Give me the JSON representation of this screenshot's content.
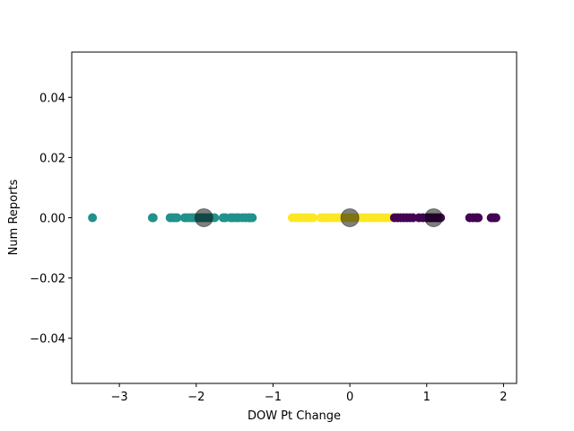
{
  "chart_data": {
    "type": "scatter",
    "title": "",
    "xlabel": "DOW Pt Change",
    "ylabel": "Num Reports",
    "xlim": [
      -3.62,
      2.17
    ],
    "ylim": [
      -0.055,
      0.055
    ],
    "xticks": [
      -3,
      -2,
      -1,
      0,
      1,
      2
    ],
    "xtick_labels": [
      "−3",
      "−2",
      "−1",
      "0",
      "1",
      "2"
    ],
    "yticks": [
      -0.04,
      -0.02,
      0.0,
      0.02,
      0.04
    ],
    "ytick_labels": [
      "−0.04",
      "−0.02",
      "0.00",
      "0.02",
      "0.04"
    ],
    "grid": false,
    "series": [
      {
        "color": "#21918c",
        "x": [
          -3.35,
          -2.57,
          -2.56,
          -2.34,
          -2.31,
          -2.28,
          -2.25,
          -2.15,
          -2.12,
          -2.08,
          -2.05,
          -2.02,
          -1.98,
          -1.95,
          -1.92,
          -1.89,
          -1.86,
          -1.83,
          -1.8,
          -1.76,
          -1.65,
          -1.62,
          -1.55,
          -1.52,
          -1.48,
          -1.45,
          -1.4,
          -1.36,
          -1.32,
          -1.3,
          -1.27
        ],
        "y": [
          0,
          0,
          0,
          0,
          0,
          0,
          0,
          0,
          0,
          0,
          0,
          0,
          0,
          0,
          0,
          0,
          0,
          0,
          0,
          0,
          0,
          0,
          0,
          0,
          0,
          0,
          0,
          0,
          0,
          0,
          0
        ]
      },
      {
        "color": "#fde725",
        "x": [
          -0.75,
          -0.7,
          -0.66,
          -0.62,
          -0.58,
          -0.55,
          -0.52,
          -0.48,
          -0.38,
          -0.35,
          -0.32,
          -0.28,
          -0.24,
          -0.2,
          -0.16,
          -0.12,
          -0.08,
          -0.04,
          0.0,
          0.04,
          0.08,
          0.12,
          0.16,
          0.2,
          0.24,
          0.28,
          0.32,
          0.36,
          0.4,
          0.44,
          0.48,
          0.52
        ],
        "y": [
          0,
          0,
          0,
          0,
          0,
          0,
          0,
          0,
          0,
          0,
          0,
          0,
          0,
          0,
          0,
          0,
          0,
          0,
          0,
          0,
          0,
          0,
          0,
          0,
          0,
          0,
          0,
          0,
          0,
          0,
          0,
          0
        ]
      },
      {
        "color": "#440154",
        "x": [
          0.58,
          0.62,
          0.66,
          0.7,
          0.74,
          0.78,
          0.82,
          0.9,
          0.95,
          1.0,
          1.03,
          1.06,
          1.09,
          1.12,
          1.15,
          1.18,
          1.56,
          1.6,
          1.64,
          1.67,
          1.84,
          1.87,
          1.9
        ],
        "y": [
          0,
          0,
          0,
          0,
          0,
          0,
          0,
          0,
          0,
          0,
          0,
          0,
          0,
          0,
          0,
          0,
          0,
          0,
          0,
          0,
          0,
          0,
          0
        ]
      }
    ],
    "centers": {
      "color": "#000000",
      "x": [
        -1.9,
        0.0,
        1.09
      ],
      "y": [
        0,
        0,
        0
      ]
    }
  }
}
